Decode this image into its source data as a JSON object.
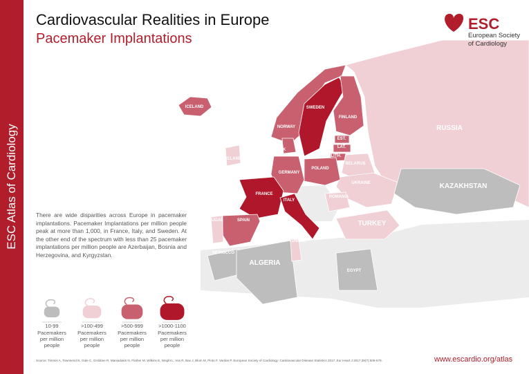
{
  "header": {
    "title": "Cardiovascular Realities in Europe",
    "subtitle": "Pacemaker Implantations"
  },
  "logo": {
    "abbr": "ESC",
    "name": [
      "European Society",
      "of Cardiology"
    ]
  },
  "sidebar": "ESC Atlas of Cardiology",
  "description": "There are wide disparities across Europe in pacemaker implantations. Pacemaker Implantations per million people peak at more than 1,000, in France, Italy, and Sweden. At the other end of the spectrum with less than 25 pacemaker implantations per million people are Azerbaijan, Bosnia and Herzegovina, and Kyrgyzstan.",
  "legend": {
    "items": [
      {
        "range": "10-99",
        "text": "Pacemakers per million people",
        "color": "#bdbdbd"
      },
      {
        "range": ">100-499",
        "text": "Pacemakers per million people",
        "color": "#f0cfd5"
      },
      {
        "range": ">500-999",
        "text": "Pacemakers per million people",
        "color": "#c8606f"
      },
      {
        "range": ">1000-1100",
        "text": "Pacemakers per million people",
        "color": "#b0172a"
      }
    ]
  },
  "map": {
    "countries": [
      {
        "label": "ICELAND",
        "band": 2
      },
      {
        "label": "NORWAY",
        "band": 2
      },
      {
        "label": "SWEDEN",
        "band": 3
      },
      {
        "label": "FINLAND",
        "band": 2
      },
      {
        "label": "RUSSIA",
        "band": 1
      },
      {
        "label": "EST.",
        "band": 2
      },
      {
        "label": "LAT.",
        "band": 2
      },
      {
        "label": "LITH.",
        "band": 2
      },
      {
        "label": "BELARUS",
        "band": 1
      },
      {
        "label": "UKRAINE",
        "band": 1
      },
      {
        "label": "KAZAKHSTAN",
        "band": 0
      },
      {
        "label": "POLAND",
        "band": 2
      },
      {
        "label": "GERMANY",
        "band": 2
      },
      {
        "label": "DENMARK",
        "band": 2
      },
      {
        "label": "IRELAND",
        "band": 1
      },
      {
        "label": "FRANCE",
        "band": 3
      },
      {
        "label": "SPAIN",
        "band": 2
      },
      {
        "label": "PORTUGAL",
        "band": 1
      },
      {
        "label": "ITALY",
        "band": 3
      },
      {
        "label": "ROMANIA",
        "band": 1
      },
      {
        "label": "TURKEY",
        "band": 1
      },
      {
        "label": "MOROCCO",
        "band": 0
      },
      {
        "label": "ALGERIA",
        "band": 0
      },
      {
        "label": "TUNISIA",
        "band": 1
      },
      {
        "label": "EGYPT",
        "band": 0
      }
    ]
  },
  "footer": {
    "source": "Source: Timmis A, Townsend N, Gale C, Grobbee R, Maniadakis N, Flather M, Wilkins E, Wright L, Vos R, Bax J, Blum M, Pinto F, Vardas P. European Society of Cardiology: Cardiovascular Disease Statistics 2017. Eur Heart J 2017;39(7):508-579.",
    "url": "www.escardio.org/atlas"
  }
}
